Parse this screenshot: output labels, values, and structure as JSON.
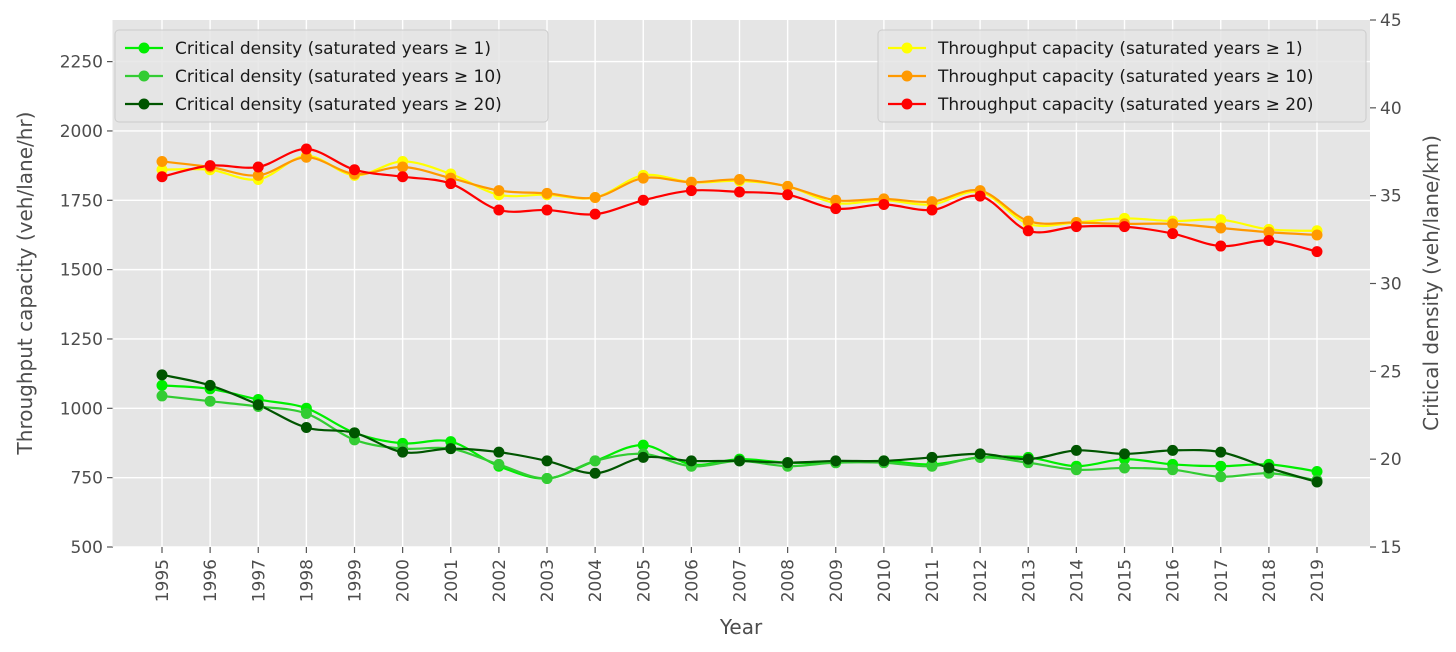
{
  "chart_data": {
    "type": "line",
    "title": "",
    "xlabel": "Year",
    "ylabel_left": "Throughput capacity (veh/lane/hr)",
    "ylabel_right": "Critical density (veh/lane/km)",
    "ylim_left": [
      500,
      2400
    ],
    "ylim_right": [
      15,
      45
    ],
    "yticks_left": [
      500,
      750,
      1000,
      1250,
      1500,
      1750,
      2000,
      2250
    ],
    "yticks_right": [
      15,
      20,
      25,
      30,
      35,
      40,
      45
    ],
    "grid": true,
    "x": [
      "1995",
      "1996",
      "1997",
      "1998",
      "1999",
      "2000",
      "2001",
      "2002",
      "2003",
      "2004",
      "2005",
      "2006",
      "2007",
      "2008",
      "2009",
      "2010",
      "2011",
      "2012",
      "2013",
      "2014",
      "2015",
      "2016",
      "2017",
      "2018",
      "2019"
    ],
    "legend_left": {
      "placement": "upper left"
    },
    "legend_right": {
      "placement": "upper right"
    },
    "series": [
      {
        "name": "Critical density (saturated years ≥ 1)",
        "axis": "right",
        "color": "#00ee00",
        "values": [
          24.2,
          24.0,
          23.4,
          22.9,
          21.5,
          20.9,
          21.0,
          19.6,
          18.9,
          19.9,
          20.8,
          19.7,
          20.0,
          19.8,
          19.8,
          19.9,
          19.7,
          20.1,
          20.1,
          19.6,
          20.0,
          19.7,
          19.6,
          19.7,
          19.3
        ]
      },
      {
        "name": "Critical density (saturated years ≥ 10)",
        "axis": "right",
        "color": "#33cc33",
        "values": [
          23.6,
          23.3,
          23.0,
          22.6,
          21.1,
          20.6,
          20.6,
          19.7,
          18.9,
          19.9,
          20.3,
          19.6,
          19.9,
          19.6,
          19.8,
          19.8,
          19.6,
          20.1,
          19.8,
          19.4,
          19.5,
          19.4,
          19.0,
          19.2,
          18.8
        ]
      },
      {
        "name": "Critical density (saturated years ≥ 20)",
        "axis": "right",
        "color": "#005500",
        "values": [
          24.8,
          24.2,
          23.1,
          21.8,
          21.5,
          20.4,
          20.6,
          20.4,
          19.9,
          19.2,
          20.1,
          19.9,
          19.9,
          19.8,
          19.9,
          19.9,
          20.1,
          20.3,
          20.0,
          20.5,
          20.3,
          20.5,
          20.4,
          19.5,
          18.7
        ]
      },
      {
        "name": "Throughput capacity (saturated years ≥ 1)",
        "axis": "left",
        "color": "#ffff00",
        "values": [
          1860,
          1860,
          1825,
          1910,
          1840,
          1890,
          1845,
          1770,
          1770,
          1760,
          1840,
          1815,
          1820,
          1800,
          1740,
          1750,
          1735,
          1780,
          1665,
          1670,
          1685,
          1675,
          1680,
          1645,
          1640
        ]
      },
      {
        "name": "Throughput capacity (saturated years ≥ 10)",
        "axis": "left",
        "color": "#ff9900",
        "values": [
          1890,
          1870,
          1840,
          1905,
          1845,
          1870,
          1830,
          1785,
          1775,
          1760,
          1830,
          1815,
          1825,
          1800,
          1750,
          1755,
          1745,
          1785,
          1675,
          1670,
          1665,
          1665,
          1650,
          1635,
          1625
        ]
      },
      {
        "name": "Throughput capacity (saturated years ≥ 20)",
        "axis": "left",
        "color": "#ff0000",
        "values": [
          1835,
          1875,
          1870,
          1935,
          1860,
          1835,
          1810,
          1715,
          1715,
          1700,
          1750,
          1785,
          1780,
          1770,
          1720,
          1735,
          1715,
          1765,
          1640,
          1655,
          1655,
          1630,
          1585,
          1605,
          1565
        ]
      }
    ]
  }
}
